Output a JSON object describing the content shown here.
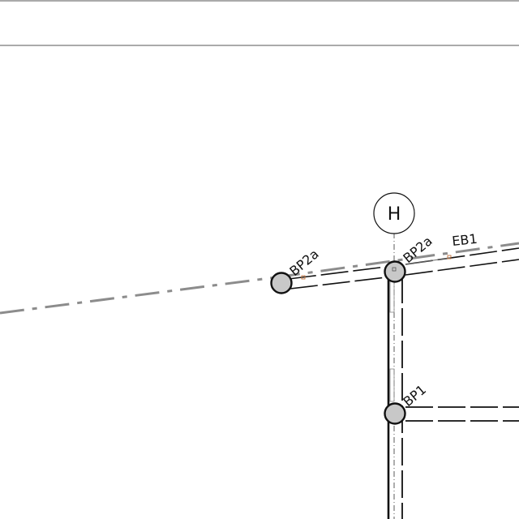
{
  "drawing": {
    "grid_line": {
      "label": "H"
    },
    "members": [
      {
        "label": "BP2a"
      },
      {
        "label": "BP2a"
      },
      {
        "label": "EB1"
      },
      {
        "label": "BP1"
      }
    ]
  },
  "colors": {
    "line": "#111111",
    "reference_dash": "#8c8c8c",
    "column_fill": "#c8c8c8",
    "connection_mark": "#c0703a"
  }
}
